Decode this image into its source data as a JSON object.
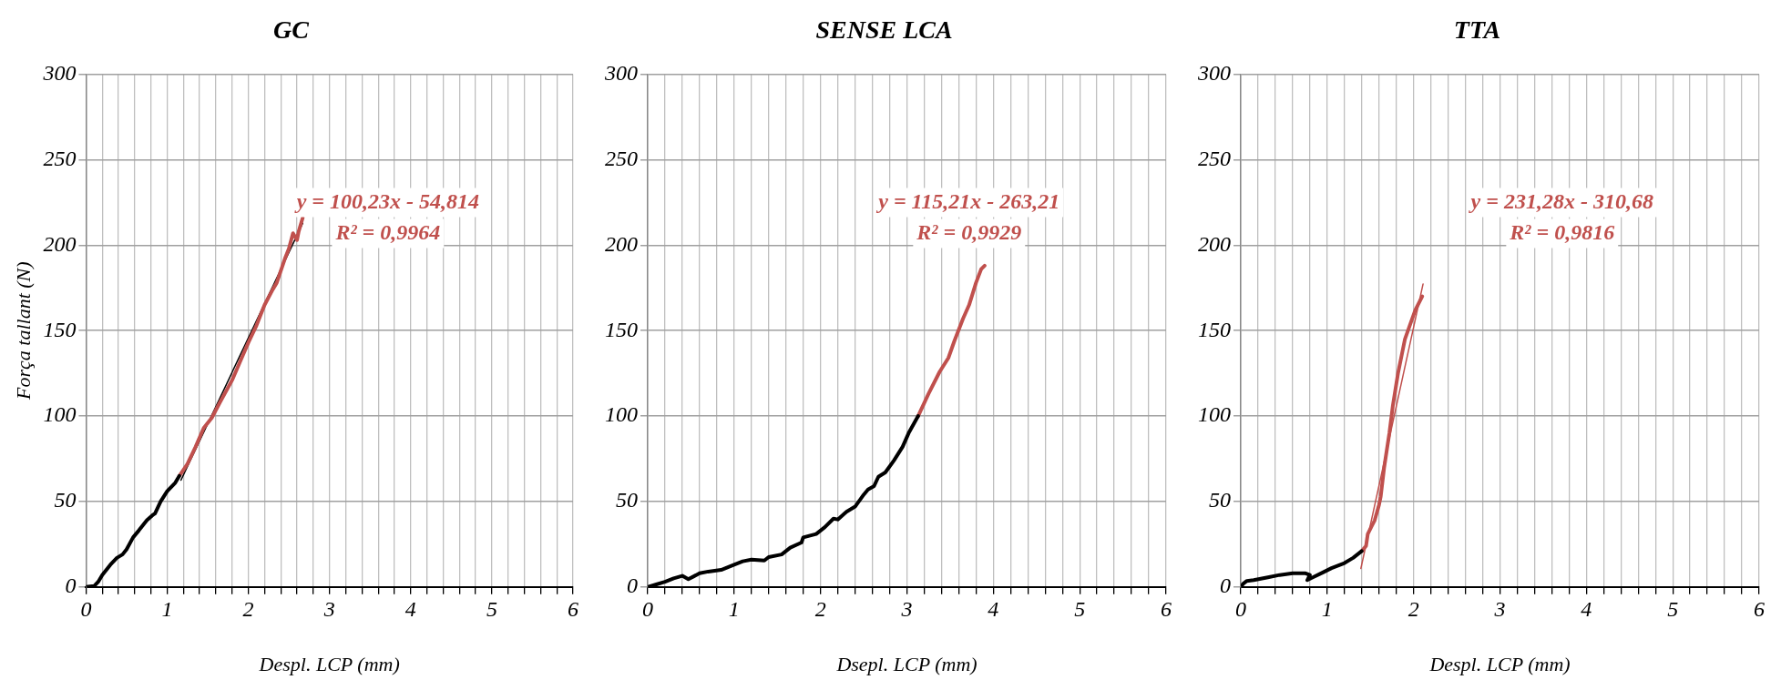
{
  "chart_data": [
    {
      "type": "line",
      "title": "GC",
      "xlabel": "Despl. LCP (mm)",
      "ylabel": "Força tallant (N)",
      "marker": "none",
      "grid": true,
      "xlim": [
        0,
        6
      ],
      "xticks": [
        0,
        {
          "value": 0.2,
          "label": null
        },
        {
          "value": 0.4,
          "label": null
        },
        {
          "value": 0.6,
          "label": null
        },
        {
          "value": 0.8,
          "label": null
        },
        1,
        {
          "value": 1.2,
          "label": null
        },
        {
          "value": 1.4,
          "label": null
        },
        {
          "value": 1.6,
          "label": null
        },
        {
          "value": 1.8,
          "label": null
        },
        2,
        {
          "value": 2.2,
          "label": null
        },
        {
          "value": 2.4,
          "label": null
        },
        {
          "value": 2.6,
          "label": null
        },
        {
          "value": 2.8,
          "label": null
        },
        3,
        {
          "value": 3.2,
          "label": null
        },
        {
          "value": 3.4,
          "label": null
        },
        {
          "value": 3.6,
          "label": null
        },
        {
          "value": 3.8,
          "label": null
        },
        4,
        {
          "value": 4.2,
          "label": null
        },
        {
          "value": 4.4,
          "label": null
        },
        {
          "value": 4.6,
          "label": null
        },
        {
          "value": 4.8,
          "label": null
        },
        5,
        {
          "value": 5.2,
          "label": null
        },
        {
          "value": 5.4,
          "label": null
        },
        {
          "value": 5.6,
          "label": null
        },
        {
          "value": 5.8,
          "label": null
        },
        6
      ],
      "ylim": [
        0,
        300
      ],
      "yticks": [
        0,
        50,
        100,
        150,
        200,
        250,
        300
      ],
      "series": [
        {
          "color": "#000000",
          "x": [
            0,
            0.1,
            0.15,
            0.2,
            0.3,
            0.38,
            0.45,
            0.5,
            0.58,
            0.65,
            0.75,
            0.82,
            0.85,
            0.92,
            1.0,
            1.1,
            1.15
          ],
          "values": [
            0,
            0.5,
            3,
            7,
            13,
            17,
            19,
            22,
            29,
            33,
            39,
            42,
            43,
            50,
            56,
            61,
            65
          ]
        },
        {
          "color": "#c0504d",
          "x": [
            1.15,
            1.25,
            1.35,
            1.45,
            1.55,
            1.65,
            1.8,
            1.9,
            2.0,
            2.1,
            2.2,
            2.3,
            2.35,
            2.45,
            2.5,
            2.55,
            2.6,
            2.62,
            2.67
          ],
          "values": [
            65,
            72,
            82,
            93,
            99,
            108,
            121,
            132,
            143,
            153,
            165,
            174,
            178,
            192,
            198,
            207,
            203,
            208,
            216
          ]
        },
        {
          "type": "line",
          "color": "#000000",
          "x": [
            1.17,
            2.67
          ],
          "values": [
            62.5,
            212.8
          ]
        }
      ],
      "annotations": [
        "y = 100,23x - 54,814",
        "R² = 0,9964"
      ]
    },
    {
      "type": "line",
      "title": "SENSE LCA",
      "xlabel": "Dsepl. LCP (mm)",
      "marker": "none",
      "grid": true,
      "xlim": [
        0,
        6
      ],
      "xticks": [
        0,
        {
          "value": 0.2,
          "label": null
        },
        {
          "value": 0.4,
          "label": null
        },
        {
          "value": 0.6,
          "label": null
        },
        {
          "value": 0.8,
          "label": null
        },
        1,
        {
          "value": 1.2,
          "label": null
        },
        {
          "value": 1.4,
          "label": null
        },
        {
          "value": 1.6,
          "label": null
        },
        {
          "value": 1.8,
          "label": null
        },
        2,
        {
          "value": 2.2,
          "label": null
        },
        {
          "value": 2.4,
          "label": null
        },
        {
          "value": 2.6,
          "label": null
        },
        {
          "value": 2.8,
          "label": null
        },
        3,
        {
          "value": 3.2,
          "label": null
        },
        {
          "value": 3.4,
          "label": null
        },
        {
          "value": 3.6,
          "label": null
        },
        {
          "value": 3.8,
          "label": null
        },
        4,
        {
          "value": 4.2,
          "label": null
        },
        {
          "value": 4.4,
          "label": null
        },
        {
          "value": 4.6,
          "label": null
        },
        {
          "value": 4.8,
          "label": null
        },
        5,
        {
          "value": 5.2,
          "label": null
        },
        {
          "value": 5.4,
          "label": null
        },
        {
          "value": 5.6,
          "label": null
        },
        {
          "value": 5.8,
          "label": null
        },
        6
      ],
      "ylim": [
        0,
        300
      ],
      "yticks": [
        0,
        50,
        100,
        150,
        200,
        250,
        300
      ],
      "series": [
        {
          "color": "#000000",
          "x": [
            0,
            0.1,
            0.2,
            0.3,
            0.4,
            0.47,
            0.6,
            0.7,
            0.85,
            1.0,
            1.1,
            1.2,
            1.35,
            1.4,
            1.55,
            1.65,
            1.78,
            1.8,
            1.95,
            2.05,
            2.15,
            2.2,
            2.3,
            2.4,
            2.5,
            2.55,
            2.62,
            2.67,
            2.75,
            2.85,
            2.95,
            3.02,
            3.13
          ],
          "values": [
            0,
            1.5,
            3,
            5,
            6.5,
            4.5,
            8,
            9,
            10,
            13,
            15,
            16,
            15.5,
            17.5,
            19,
            23,
            26,
            29,
            31,
            35,
            40,
            39.5,
            44,
            47,
            54,
            57,
            59,
            64.5,
            67,
            74,
            82,
            90,
            100
          ]
        },
        {
          "color": "#c0504d",
          "x": [
            3.13,
            3.25,
            3.38,
            3.48,
            3.55,
            3.65,
            3.72,
            3.8,
            3.86,
            3.9
          ],
          "values": [
            100,
            113,
            126,
            134,
            144,
            157,
            165,
            178,
            186,
            188
          ]
        }
      ],
      "annotations": [
        "y = 115,21x - 263,21",
        "R² = 0,9929"
      ]
    },
    {
      "type": "line",
      "title": "TTA",
      "xlabel": "Despl. LCP (mm)",
      "marker": "none",
      "grid": true,
      "xlim": [
        0,
        6
      ],
      "xticks": [
        0,
        {
          "value": 0.2,
          "label": null
        },
        {
          "value": 0.4,
          "label": null
        },
        {
          "value": 0.6,
          "label": null
        },
        {
          "value": 0.8,
          "label": null
        },
        1,
        {
          "value": 1.2,
          "label": null
        },
        {
          "value": 1.4,
          "label": null
        },
        {
          "value": 1.6,
          "label": null
        },
        {
          "value": 1.8,
          "label": null
        },
        2,
        {
          "value": 2.2,
          "label": null
        },
        {
          "value": 2.4,
          "label": null
        },
        {
          "value": 2.6,
          "label": null
        },
        {
          "value": 2.8,
          "label": null
        },
        3,
        {
          "value": 3.2,
          "label": null
        },
        {
          "value": 3.4,
          "label": null
        },
        {
          "value": 3.6,
          "label": null
        },
        {
          "value": 3.8,
          "label": null
        },
        4,
        {
          "value": 4.2,
          "label": null
        },
        {
          "value": 4.4,
          "label": null
        },
        {
          "value": 4.6,
          "label": null
        },
        {
          "value": 4.8,
          "label": null
        },
        5,
        {
          "value": 5.2,
          "label": null
        },
        {
          "value": 5.4,
          "label": null
        },
        {
          "value": 5.6,
          "label": null
        },
        {
          "value": 5.8,
          "label": null
        },
        6
      ],
      "ylim": [
        0,
        300
      ],
      "yticks": [
        0,
        50,
        100,
        150,
        200,
        250,
        300
      ],
      "series": [
        {
          "color": "#000000",
          "x": [
            0,
            0.03,
            0.07,
            0.15,
            0.3,
            0.45,
            0.6,
            0.75,
            0.8,
            0.77,
            0.85,
            0.95,
            1.05,
            1.2,
            1.3,
            1.4
          ],
          "values": [
            0,
            2,
            3.5,
            4,
            5.5,
            7,
            8,
            8,
            7,
            4,
            6,
            8.5,
            11,
            14,
            17,
            21
          ]
        },
        {
          "color": "#c0504d",
          "x": [
            1.4,
            1.45,
            1.47,
            1.52,
            1.55,
            1.6,
            1.62,
            1.66,
            1.72,
            1.76,
            1.82,
            1.9,
            1.97,
            2.02,
            2.1
          ],
          "values": [
            21,
            24,
            31,
            36,
            39,
            48,
            53,
            70,
            90,
            106,
            125,
            145,
            155,
            162,
            170
          ]
        },
        {
          "type": "line",
          "color": "#c0504d",
          "x": [
            1.39,
            2.11
          ],
          "values": [
            10.8,
            177.3
          ]
        }
      ],
      "annotations": [
        "y = 231,28x - 310,68",
        "R² = 0,9816"
      ]
    }
  ]
}
